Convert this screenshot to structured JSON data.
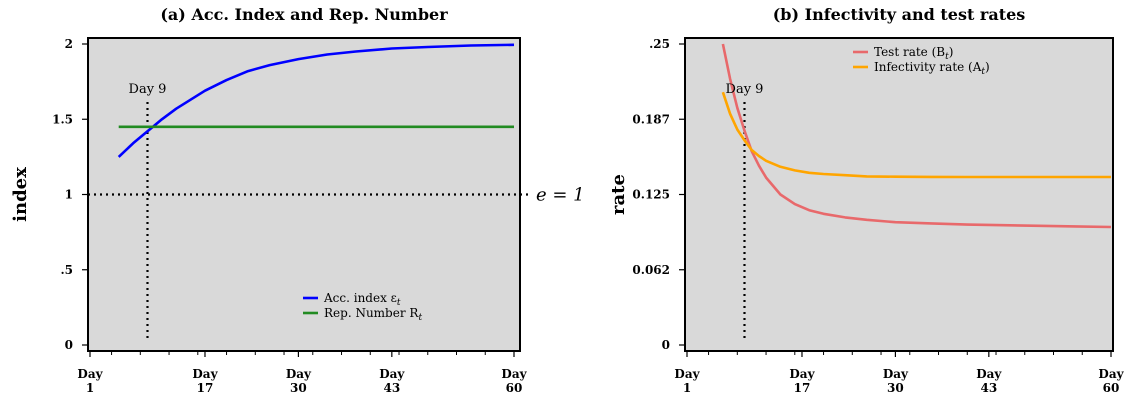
{
  "chart_data": [
    {
      "type": "line",
      "title": "(a) Acc. Index and Rep. Number",
      "ylabel": "index",
      "xlabel": "",
      "xlim": [
        1,
        60
      ],
      "ylim": [
        0,
        2
      ],
      "x_ticks": [
        {
          "x": 1,
          "label1": "Day",
          "label2": "1"
        },
        {
          "x": 17,
          "label1": "Day",
          "label2": "17"
        },
        {
          "x": 30,
          "label1": "Day",
          "label2": "30"
        },
        {
          "x": 43,
          "label1": "Day",
          "label2": "43"
        },
        {
          "x": 60,
          "label1": "Day",
          "label2": "60"
        }
      ],
      "y_ticks": [
        {
          "y": 0,
          "label": "0"
        },
        {
          "y": 0.5,
          "label": ".5"
        },
        {
          "y": 1,
          "label": "1"
        },
        {
          "y": 1.5,
          "label": "1.5"
        },
        {
          "y": 2,
          "label": "2"
        }
      ],
      "series": [
        {
          "name": "Acc. index ε",
          "subscript": "t",
          "color": "#0000ff",
          "x": [
            5,
            7,
            9,
            11,
            13,
            15,
            17,
            20,
            23,
            26,
            30,
            34,
            38,
            43,
            48,
            54,
            60
          ],
          "y": [
            1.25,
            1.34,
            1.42,
            1.5,
            1.57,
            1.63,
            1.69,
            1.76,
            1.82,
            1.86,
            1.9,
            1.93,
            1.95,
            1.97,
            1.98,
            1.99,
            1.995
          ]
        },
        {
          "name": "Rep. Number R",
          "subscript": "t",
          "color": "#228b22",
          "x": [
            5,
            60
          ],
          "y": [
            1.45,
            1.45
          ]
        }
      ],
      "annotations": [
        {
          "text": "Day 9",
          "x": 9,
          "y": 1.66
        },
        {
          "text": "e = 1",
          "y": 1
        }
      ],
      "ref_lines": {
        "vertical_x": 9,
        "horizontal_y": 1
      },
      "legend": "lower-right"
    },
    {
      "type": "line",
      "title": "(b) Infectivity and test rates",
      "ylabel": "rate",
      "xlabel": "",
      "xlim": [
        1,
        60
      ],
      "ylim": [
        0,
        0.25
      ],
      "x_ticks": [
        {
          "x": 1,
          "label1": "Day",
          "label2": "1"
        },
        {
          "x": 17,
          "label1": "Day",
          "label2": "17"
        },
        {
          "x": 30,
          "label1": "Day",
          "label2": "30"
        },
        {
          "x": 43,
          "label1": "Day",
          "label2": "43"
        },
        {
          "x": 60,
          "label1": "Day",
          "label2": "60"
        }
      ],
      "y_ticks": [
        {
          "y": 0,
          "label": "0"
        },
        {
          "y": 0.0625,
          "label": "0.062"
        },
        {
          "y": 0.125,
          "label": "0.125"
        },
        {
          "y": 0.1875,
          "label": "0.187"
        },
        {
          "y": 0.25,
          "label": ".25"
        }
      ],
      "series": [
        {
          "name": "Test rate (B",
          "subscript": "t",
          "suffix": ")",
          "color": "#e8696b",
          "x": [
            6,
            7,
            8,
            9,
            10,
            11,
            12,
            14,
            16,
            18,
            20,
            23,
            26,
            30,
            35,
            40,
            45,
            50,
            55,
            60
          ],
          "y": [
            0.25,
            0.221,
            0.197,
            0.178,
            0.161,
            0.149,
            0.139,
            0.125,
            0.117,
            0.112,
            0.109,
            0.106,
            0.104,
            0.102,
            0.101,
            0.1,
            0.0995,
            0.099,
            0.0985,
            0.098
          ]
        },
        {
          "name": "Infectivity rate (A",
          "subscript": "t",
          "suffix": ")",
          "color": "#ffa500",
          "x": [
            6,
            7,
            8,
            9,
            10,
            11,
            12,
            14,
            16,
            18,
            20,
            23,
            26,
            30,
            35,
            40,
            45,
            50,
            55,
            60
          ],
          "y": [
            0.21,
            0.192,
            0.179,
            0.17,
            0.162,
            0.157,
            0.153,
            0.148,
            0.145,
            0.143,
            0.142,
            0.141,
            0.14,
            0.1398,
            0.1396,
            0.1395,
            0.1395,
            0.1395,
            0.1395,
            0.1395
          ]
        }
      ],
      "annotations": [
        {
          "text": "Day 9",
          "x": 9,
          "y": 0.208
        }
      ],
      "ref_lines": {
        "vertical_x": 9
      },
      "legend": "top-right"
    }
  ]
}
